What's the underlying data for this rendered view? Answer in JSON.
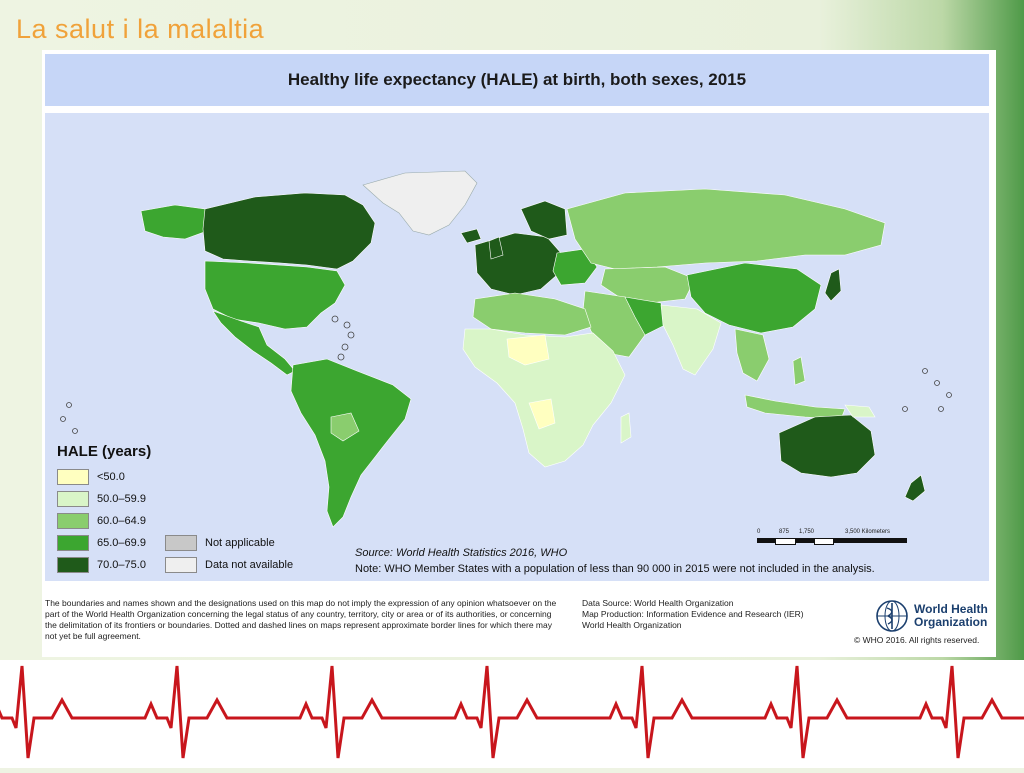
{
  "slide": {
    "title": "La salut i la malaltia"
  },
  "map": {
    "title": "Healthy life expectancy (HALE) at birth, both sexes, 2015",
    "legend": {
      "title": "HALE (years)",
      "classes": [
        {
          "label": "<50.0",
          "color": "#ffffc0"
        },
        {
          "label": "50.0–59.9",
          "color": "#d9f5c8"
        },
        {
          "label": "60.0–64.9",
          "color": "#8acd6e"
        },
        {
          "label": "65.0–69.9",
          "color": "#3ca630"
        },
        {
          "label": "70.0–75.0",
          "color": "#1f5a1a"
        },
        {
          "label": "Not applicable",
          "color": "#c8c8c8"
        },
        {
          "label": "Data not available",
          "color": "#efefef"
        }
      ]
    },
    "scale": {
      "ticks": [
        "0",
        "875",
        "1,750",
        "3,500 Kilometers"
      ]
    },
    "source": "Source: World Health Statistics 2016, WHO",
    "note": "Note: WHO Member States with a population of less than 90 000 in 2015 were not included in the analysis.",
    "ocean_color": "#d6e0f7",
    "header_color": "#c6d6f7"
  },
  "footer": {
    "disclaimer": "The boundaries and names shown and the designations used on this map do not imply the expression of any opinion whatsoever on the part of the World Health Organization concerning the legal status of any country, territory, city or area or of its authorities, or concerning the delimitation of its frontiers or boundaries. Dotted and dashed lines on maps represent approximate border lines for which there may not yet be full agreement.",
    "data_source": "Data Source: World Health Organization",
    "map_production": "Map Production: Information Evidence and Research (IER)",
    "org": "World Health Organization",
    "who_name_line1": "World Health",
    "who_name_line2": "Organization",
    "copyright": "© WHO 2016. All rights reserved."
  },
  "ecg": {
    "color": "#c8161d"
  }
}
